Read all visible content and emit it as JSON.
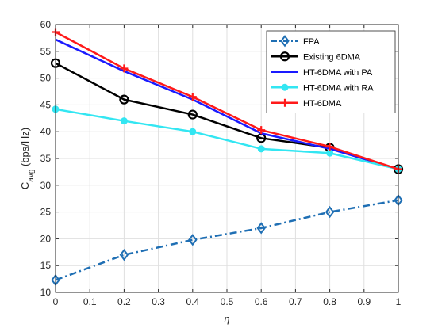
{
  "chart_data": {
    "type": "line",
    "xlabel": "η",
    "ylabel": "C",
    "ylabel_sub": "avg",
    "ylabel_unit": " (bps/Hz)",
    "xlim": [
      0,
      1
    ],
    "ylim": [
      10,
      60
    ],
    "xticks": [
      "0",
      "0.1",
      "0.2",
      "0.3",
      "0.4",
      "0.5",
      "0.6",
      "0.7",
      "0.8",
      "0.9",
      "1"
    ],
    "yticks": [
      "10",
      "15",
      "20",
      "25",
      "30",
      "35",
      "40",
      "45",
      "50",
      "55",
      "60"
    ],
    "grid": true,
    "legend_position": "top-right",
    "x": [
      0,
      0.2,
      0.4,
      0.6,
      0.8,
      1.0
    ],
    "series": [
      {
        "name": "FPA",
        "values": [
          12.3,
          17.0,
          19.8,
          22.0,
          25.0,
          27.2
        ],
        "color": "#1f6fb4",
        "marker": "diamond",
        "dash": "dashdot",
        "width": 2.5
      },
      {
        "name": "Existing 6DMA",
        "values": [
          52.8,
          46.0,
          43.2,
          38.8,
          37.0,
          33.0
        ],
        "color": "#000000",
        "marker": "circle",
        "dash": "solid",
        "width": 2.5
      },
      {
        "name": "HT-6DMA with PA",
        "values": [
          57.2,
          51.3,
          46.0,
          39.7,
          36.8,
          33.0
        ],
        "color": "#1a1aff",
        "marker": "none",
        "dash": "solid",
        "width": 2.5
      },
      {
        "name": "HT-6DMA with RA",
        "values": [
          44.2,
          42.0,
          40.0,
          36.8,
          36.0,
          33.0
        ],
        "color": "#33e6f2",
        "marker": "dot",
        "dash": "solid",
        "width": 2.5
      },
      {
        "name": "HT-6DMA",
        "values": [
          58.6,
          51.8,
          46.5,
          40.3,
          37.2,
          33.0
        ],
        "color": "#ff1a1a",
        "marker": "plus",
        "dash": "solid",
        "width": 2.5
      }
    ]
  }
}
